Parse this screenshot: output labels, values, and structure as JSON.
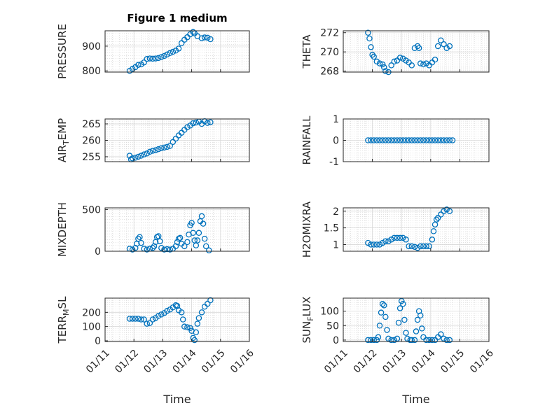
{
  "figure": {
    "title": "Figure 1 medium",
    "accent": "#0072BD"
  },
  "chart_data": [
    {
      "id": "pressure",
      "type": "scatter",
      "title": "Figure 1 medium",
      "ylabel": "PRESSURE",
      "ylim": [
        795,
        962
      ],
      "yticks": [
        "800",
        "900"
      ],
      "ytickvals": [
        800,
        900
      ],
      "xlim": [
        "2024-01-11",
        "2024-01-16"
      ],
      "xticks": [],
      "xlabel": "",
      "points": [
        [
          0,
          800
        ],
        [
          0.1,
          808
        ],
        [
          0.2,
          815
        ],
        [
          0.3,
          824
        ],
        [
          0.4,
          826
        ],
        [
          0.5,
          834
        ],
        [
          0.6,
          848
        ],
        [
          0.7,
          850
        ],
        [
          0.8,
          849
        ],
        [
          0.9,
          850
        ],
        [
          1.0,
          852
        ],
        [
          1.1,
          856
        ],
        [
          1.2,
          860
        ],
        [
          1.3,
          866
        ],
        [
          1.4,
          872
        ],
        [
          1.5,
          877
        ],
        [
          1.6,
          882
        ],
        [
          1.7,
          890
        ],
        [
          1.8,
          912
        ],
        [
          1.9,
          926
        ],
        [
          2.0,
          936
        ],
        [
          2.1,
          948
        ],
        [
          2.2,
          957
        ],
        [
          2.25,
          952
        ],
        [
          2.35,
          940
        ],
        [
          2.5,
          932
        ],
        [
          2.6,
          935
        ],
        [
          2.7,
          934
        ],
        [
          2.8,
          928
        ]
      ]
    },
    {
      "id": "theta",
      "type": "scatter",
      "ylabel": "THETA",
      "ylim": [
        267.9,
        272.2
      ],
      "yticks": [
        "268",
        "270",
        "272"
      ],
      "ytickvals": [
        268,
        270,
        272
      ],
      "xlim": [
        "2024-01-11",
        "2024-01-16"
      ],
      "xticks": [],
      "xlabel": "",
      "points": [
        [
          0,
          272
        ],
        [
          0.05,
          271.4
        ],
        [
          0.1,
          270.5
        ],
        [
          0.15,
          269.7
        ],
        [
          0.2,
          269.5
        ],
        [
          0.3,
          269
        ],
        [
          0.4,
          268.8
        ],
        [
          0.5,
          268.7
        ],
        [
          0.55,
          268.4
        ],
        [
          0.6,
          268
        ],
        [
          0.7,
          267.9
        ],
        [
          0.8,
          268.6
        ],
        [
          0.9,
          269
        ],
        [
          1.0,
          269.1
        ],
        [
          1.1,
          269.4
        ],
        [
          1.2,
          269.3
        ],
        [
          1.3,
          269.1
        ],
        [
          1.4,
          268.9
        ],
        [
          1.5,
          268.6
        ],
        [
          1.6,
          270.4
        ],
        [
          1.7,
          270.6
        ],
        [
          1.75,
          270.4
        ],
        [
          1.8,
          268.8
        ],
        [
          1.9,
          268.7
        ],
        [
          2.0,
          268.8
        ],
        [
          2.1,
          268.6
        ],
        [
          2.2,
          268.9
        ],
        [
          2.3,
          269.2
        ],
        [
          2.4,
          270.6
        ],
        [
          2.5,
          271.2
        ],
        [
          2.6,
          270.8
        ],
        [
          2.7,
          270.4
        ],
        [
          2.8,
          270.6
        ]
      ]
    },
    {
      "id": "air-temp",
      "type": "scatter",
      "ylabel": "AIR_TEMP",
      "ylim": [
        253.5,
        266.5
      ],
      "yticks": [
        "255",
        "260",
        "265"
      ],
      "ytickvals": [
        255,
        260,
        265
      ],
      "xlim": [
        "2024-01-11",
        "2024-01-16"
      ],
      "xticks": [],
      "xlabel": "",
      "points": [
        [
          0,
          255.3
        ],
        [
          0.05,
          254.2
        ],
        [
          0.1,
          254.5
        ],
        [
          0.2,
          254.7
        ],
        [
          0.3,
          255
        ],
        [
          0.4,
          255.3
        ],
        [
          0.5,
          255.7
        ],
        [
          0.6,
          256
        ],
        [
          0.7,
          256.5
        ],
        [
          0.8,
          256.8
        ],
        [
          0.9,
          257
        ],
        [
          1.0,
          257.3
        ],
        [
          1.1,
          257.6
        ],
        [
          1.2,
          257.8
        ],
        [
          1.3,
          258
        ],
        [
          1.4,
          258.3
        ],
        [
          1.5,
          259.5
        ],
        [
          1.6,
          260.5
        ],
        [
          1.7,
          261.5
        ],
        [
          1.8,
          262.3
        ],
        [
          1.9,
          263.2
        ],
        [
          2.0,
          264
        ],
        [
          2.1,
          264.5
        ],
        [
          2.2,
          265.2
        ],
        [
          2.3,
          265.4
        ],
        [
          2.4,
          265.7
        ],
        [
          2.5,
          265
        ],
        [
          2.6,
          265.8
        ],
        [
          2.7,
          265.3
        ],
        [
          2.8,
          265.5
        ]
      ]
    },
    {
      "id": "rainfall",
      "type": "scatter",
      "ylabel": "RAINFALL",
      "ylim": [
        -1,
        1
      ],
      "yticks": [
        "-1",
        "0",
        "1"
      ],
      "ytickvals": [
        -1,
        0,
        1
      ],
      "xlim": [
        "2024-01-11",
        "2024-01-16"
      ],
      "xticks": [],
      "xlabel": "",
      "points": [
        [
          0,
          0
        ],
        [
          0.1,
          0
        ],
        [
          0.2,
          0
        ],
        [
          0.3,
          0
        ],
        [
          0.4,
          0
        ],
        [
          0.5,
          0
        ],
        [
          0.6,
          0
        ],
        [
          0.7,
          0
        ],
        [
          0.8,
          0
        ],
        [
          0.9,
          0
        ],
        [
          1.0,
          0
        ],
        [
          1.1,
          0
        ],
        [
          1.2,
          0
        ],
        [
          1.3,
          0
        ],
        [
          1.4,
          0
        ],
        [
          1.5,
          0
        ],
        [
          1.6,
          0
        ],
        [
          1.7,
          0
        ],
        [
          1.8,
          0
        ],
        [
          1.9,
          0
        ],
        [
          2.0,
          0
        ],
        [
          2.1,
          0
        ],
        [
          2.2,
          0
        ],
        [
          2.3,
          0
        ],
        [
          2.4,
          0
        ],
        [
          2.5,
          0
        ],
        [
          2.6,
          0
        ],
        [
          2.7,
          0
        ],
        [
          2.8,
          0
        ],
        [
          2.9,
          0
        ]
      ]
    },
    {
      "id": "mixdepth",
      "type": "scatter",
      "ylabel": "MIXDEPTH",
      "ylim": [
        0,
        520
      ],
      "yticks": [
        "0",
        "500"
      ],
      "ytickvals": [
        0,
        500
      ],
      "xlim": [
        "2024-01-11",
        "2024-01-16"
      ],
      "xticks": [],
      "xlabel": "",
      "points": [
        [
          0,
          30
        ],
        [
          0.1,
          20
        ],
        [
          0.2,
          40
        ],
        [
          0.25,
          90
        ],
        [
          0.3,
          150
        ],
        [
          0.35,
          170
        ],
        [
          0.4,
          100
        ],
        [
          0.5,
          30
        ],
        [
          0.6,
          20
        ],
        [
          0.7,
          30
        ],
        [
          0.8,
          40
        ],
        [
          0.85,
          60
        ],
        [
          0.9,
          110
        ],
        [
          0.95,
          170
        ],
        [
          1.0,
          180
        ],
        [
          1.05,
          120
        ],
        [
          1.1,
          40
        ],
        [
          1.2,
          20
        ],
        [
          1.3,
          25
        ],
        [
          1.4,
          20
        ],
        [
          1.5,
          30
        ],
        [
          1.6,
          60
        ],
        [
          1.65,
          110
        ],
        [
          1.7,
          150
        ],
        [
          1.75,
          160
        ],
        [
          1.8,
          90
        ],
        [
          1.9,
          60
        ],
        [
          2.0,
          110
        ],
        [
          2.05,
          200
        ],
        [
          2.1,
          310
        ],
        [
          2.15,
          340
        ],
        [
          2.2,
          220
        ],
        [
          2.25,
          130
        ],
        [
          2.3,
          70
        ],
        [
          2.35,
          130
        ],
        [
          2.4,
          220
        ],
        [
          2.45,
          360
        ],
        [
          2.5,
          420
        ],
        [
          2.55,
          330
        ],
        [
          2.6,
          150
        ],
        [
          2.65,
          60
        ],
        [
          2.75,
          10
        ]
      ]
    },
    {
      "id": "h2omixra",
      "type": "scatter",
      "ylabel": "H2OMIXRA",
      "ylim": [
        0.8,
        2.1
      ],
      "yticks": [
        "1",
        "1.5",
        "2"
      ],
      "ytickvals": [
        1,
        1.5,
        2
      ],
      "xlim": [
        "2024-01-11",
        "2024-01-16"
      ],
      "xticks": [],
      "xlabel": "",
      "points": [
        [
          0,
          1.05
        ],
        [
          0.1,
          1
        ],
        [
          0.2,
          1
        ],
        [
          0.3,
          1
        ],
        [
          0.4,
          1
        ],
        [
          0.5,
          1.05
        ],
        [
          0.6,
          1.1
        ],
        [
          0.7,
          1.1
        ],
        [
          0.8,
          1.15
        ],
        [
          0.9,
          1.2
        ],
        [
          1.0,
          1.2
        ],
        [
          1.1,
          1.2
        ],
        [
          1.2,
          1.2
        ],
        [
          1.3,
          1.15
        ],
        [
          1.4,
          0.95
        ],
        [
          1.5,
          0.95
        ],
        [
          1.6,
          0.93
        ],
        [
          1.7,
          0.9
        ],
        [
          1.8,
          0.95
        ],
        [
          1.9,
          0.95
        ],
        [
          2.0,
          0.95
        ],
        [
          2.1,
          0.95
        ],
        [
          2.2,
          1.15
        ],
        [
          2.25,
          1.4
        ],
        [
          2.3,
          1.6
        ],
        [
          2.35,
          1.75
        ],
        [
          2.4,
          1.8
        ],
        [
          2.5,
          1.9
        ],
        [
          2.6,
          2
        ],
        [
          2.7,
          2.05
        ],
        [
          2.8,
          2
        ]
      ]
    },
    {
      "id": "terr-msl",
      "type": "scatter",
      "ylabel": "TERR_MSL",
      "ylim": [
        -5,
        300
      ],
      "yticks": [
        "0",
        "100",
        "200"
      ],
      "ytickvals": [
        0,
        100,
        200
      ],
      "xlim": [
        "2024-01-11",
        "2024-01-16"
      ],
      "xticks": [
        "01/11",
        "01/12",
        "01/13",
        "01/14",
        "01/15",
        "01/16"
      ],
      "xlabel": "Time",
      "points": [
        [
          0,
          155
        ],
        [
          0.1,
          155
        ],
        [
          0.2,
          155
        ],
        [
          0.3,
          155
        ],
        [
          0.4,
          150
        ],
        [
          0.5,
          150
        ],
        [
          0.6,
          120
        ],
        [
          0.7,
          125
        ],
        [
          0.8,
          150
        ],
        [
          0.9,
          160
        ],
        [
          1.0,
          175
        ],
        [
          1.1,
          185
        ],
        [
          1.2,
          195
        ],
        [
          1.3,
          210
        ],
        [
          1.4,
          220
        ],
        [
          1.5,
          235
        ],
        [
          1.6,
          250
        ],
        [
          1.65,
          245
        ],
        [
          1.7,
          215
        ],
        [
          1.8,
          200
        ],
        [
          1.85,
          150
        ],
        [
          1.9,
          100
        ],
        [
          2.0,
          95
        ],
        [
          2.1,
          90
        ],
        [
          2.15,
          70
        ],
        [
          2.2,
          20
        ],
        [
          2.25,
          5
        ],
        [
          2.3,
          60
        ],
        [
          2.35,
          120
        ],
        [
          2.4,
          160
        ],
        [
          2.5,
          200
        ],
        [
          2.6,
          240
        ],
        [
          2.7,
          260
        ],
        [
          2.8,
          285
        ]
      ]
    },
    {
      "id": "sun-flux",
      "type": "scatter",
      "ylabel": "SUN_FLUX",
      "ylim": [
        -5,
        145
      ],
      "yticks": [
        "0",
        "50",
        "100"
      ],
      "ytickvals": [
        0,
        50,
        100
      ],
      "xlim": [
        "2024-01-11",
        "2024-01-16"
      ],
      "xticks": [
        "01/11",
        "01/12",
        "01/13",
        "01/14",
        "01/15",
        "01/16"
      ],
      "xlabel": "Time",
      "points": [
        [
          0,
          0
        ],
        [
          0.1,
          0
        ],
        [
          0.2,
          0
        ],
        [
          0.3,
          0
        ],
        [
          0.35,
          10
        ],
        [
          0.4,
          50
        ],
        [
          0.45,
          95
        ],
        [
          0.5,
          125
        ],
        [
          0.55,
          120
        ],
        [
          0.6,
          80
        ],
        [
          0.65,
          35
        ],
        [
          0.7,
          5
        ],
        [
          0.8,
          0
        ],
        [
          0.9,
          0
        ],
        [
          1.0,
          5
        ],
        [
          1.05,
          60
        ],
        [
          1.1,
          110
        ],
        [
          1.15,
          135
        ],
        [
          1.2,
          125
        ],
        [
          1.25,
          70
        ],
        [
          1.3,
          25
        ],
        [
          1.35,
          5
        ],
        [
          1.45,
          0
        ],
        [
          1.5,
          0
        ],
        [
          1.6,
          0
        ],
        [
          1.65,
          30
        ],
        [
          1.7,
          70
        ],
        [
          1.75,
          100
        ],
        [
          1.8,
          85
        ],
        [
          1.85,
          40
        ],
        [
          1.9,
          10
        ],
        [
          2.0,
          0
        ],
        [
          2.1,
          0
        ],
        [
          2.2,
          0
        ],
        [
          2.3,
          0
        ],
        [
          2.4,
          10
        ],
        [
          2.5,
          20
        ],
        [
          2.6,
          5
        ],
        [
          2.7,
          0
        ],
        [
          2.8,
          0
        ]
      ]
    }
  ]
}
